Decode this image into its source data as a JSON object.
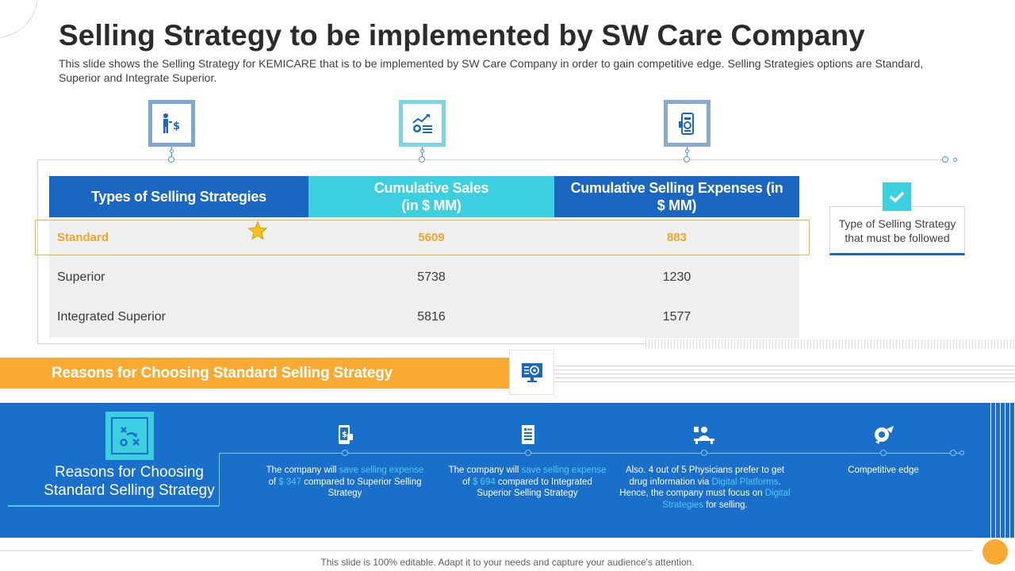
{
  "header": {
    "title": "Selling Strategy to be implemented by SW Care Company",
    "subtitle": "This slide shows the Selling Strategy for KEMICARE that is to be implemented by SW Care Company in order to gain competitive edge. Selling Strategies options are Standard, Superior and Integrate Superior."
  },
  "top_icons": [
    "person-dollar-icon",
    "growth-chart-coins-icon",
    "mobile-payment-icon"
  ],
  "table": {
    "headers": {
      "col1": "Types of Selling Strategies",
      "col2_line1": "Cumulative Sales",
      "col2_line2": "(in $ MM)",
      "col3_line1": "Cumulative Selling Expenses (in",
      "col3_line2": "$ MM)"
    },
    "rows": [
      {
        "type": "Standard",
        "sales": "5609",
        "expenses": "883",
        "highlighted": true
      },
      {
        "type": "Superior",
        "sales": "5738",
        "expenses": "1230",
        "highlighted": false
      },
      {
        "type": "Integrated Superior",
        "sales": "5816",
        "expenses": "1577",
        "highlighted": false
      }
    ]
  },
  "callout": {
    "line1": "Type of Selling Strategy",
    "line2": "that must be followed"
  },
  "banner": {
    "title": "Reasons for Choosing Standard Selling Strategy"
  },
  "reasons_section": {
    "title_line1": "Reasons for Choosing",
    "title_line2": "Standard Selling Strategy",
    "steps": [
      {
        "pre": "The company will ",
        "acc1": "save selling expense",
        "mid": " of ",
        "acc2": "$ 347",
        "post": " compared to Superior Selling Strategy"
      },
      {
        "pre": "The company will ",
        "acc1": "save selling expense",
        "mid": " of ",
        "acc2": "$ 694",
        "post": " compared to Integrated Superior Selling Strategy"
      },
      {
        "pre": "Also. 4 out of 5 Physicians prefer to get drug information via ",
        "acc1": "Digital Platforms",
        "mid": ". Hence, the company must focus on ",
        "acc2": "Digital Strategies",
        "post": " for selling."
      },
      {
        "pre": "Competitive edge",
        "acc1": "",
        "mid": "",
        "acc2": "",
        "post": ""
      }
    ]
  },
  "footer": {
    "text": "This slide is 100% editable. Adapt it to your needs and capture your audience's attention."
  },
  "colors": {
    "primary_blue": "#1a66c0",
    "section_blue": "#1a6fcb",
    "cyan": "#3bcfe0",
    "orange": "#f8aa33",
    "accent_text": "#55c8f5"
  }
}
